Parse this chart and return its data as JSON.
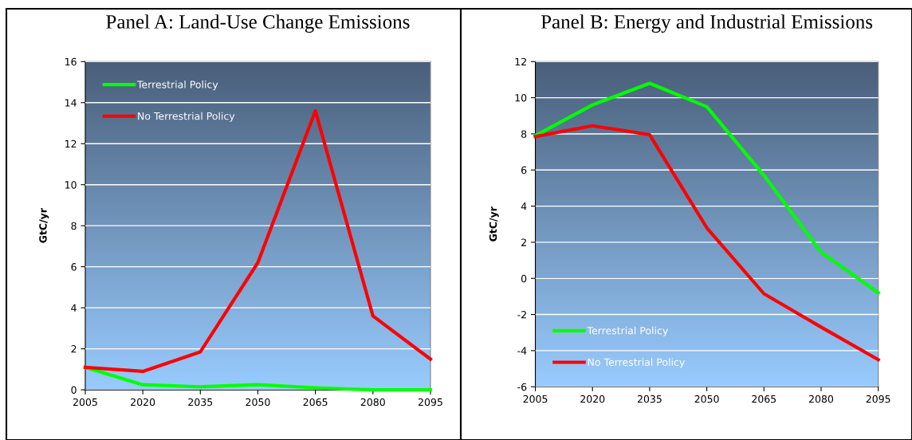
{
  "chart_data": [
    {
      "type": "line",
      "title": "Panel A: Land-Use Change Emissions",
      "ylabel": "GtC/yr",
      "categories": [
        "2005",
        "2020",
        "2035",
        "2050",
        "2065",
        "2080",
        "2095"
      ],
      "ylim": [
        0,
        16
      ],
      "yticks": [
        0,
        2,
        4,
        6,
        8,
        10,
        12,
        14,
        16
      ],
      "grid": "y",
      "legend": "top left",
      "line_style": "solid",
      "series": [
        {
          "name": "Terrestrial Policy",
          "color": "#00ff00",
          "values": [
            1.1,
            0.25,
            0.15,
            0.25,
            0.1,
            0.0,
            0.0
          ]
        },
        {
          "name": "No Terrestrial Policy",
          "color": "#ff0000",
          "values": [
            1.1,
            0.9,
            1.85,
            6.2,
            13.6,
            3.6,
            1.5
          ]
        }
      ]
    },
    {
      "type": "line",
      "title": "Panel B: Energy and Industrial Emissions",
      "ylabel": "GtC/yr",
      "categories": [
        "2005",
        "2020",
        "2035",
        "2050",
        "2065",
        "2080",
        "2095"
      ],
      "ylim": [
        -6,
        12
      ],
      "yticks": [
        -6,
        -4,
        -2,
        0,
        2,
        4,
        6,
        8,
        10,
        12
      ],
      "grid": "y",
      "legend": "bottom left",
      "line_style": "solid",
      "ref_lines": [
        {
          "axis": "y",
          "value": 0,
          "color": "#000000"
        }
      ],
      "series": [
        {
          "name": "Terrestrial Policy",
          "color": "#00ff00",
          "values": [
            7.9,
            9.6,
            10.8,
            9.5,
            5.7,
            1.45,
            -0.8
          ]
        },
        {
          "name": "No Terrestrial Policy",
          "color": "#ff0000",
          "values": [
            7.85,
            8.45,
            7.95,
            2.8,
            -0.85,
            -2.7,
            -4.5
          ]
        }
      ]
    }
  ]
}
